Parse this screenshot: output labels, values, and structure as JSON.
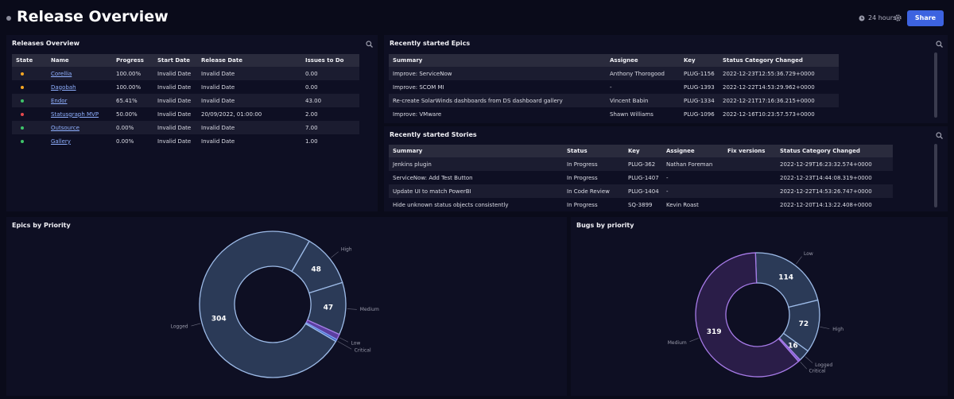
{
  "header": {
    "title": "Release Overview",
    "time_range": "24 hours",
    "share_button": "Share"
  },
  "releases": {
    "title": "Releases Overview",
    "headers": [
      "State",
      "Name",
      "Progress",
      "Start Date",
      "Release Date",
      "Issues to Do"
    ],
    "state_colors": [
      "#f5a623",
      "#f5a623",
      "#3fc46a",
      "#e5484d",
      "#3fc46a",
      "#3fc46a"
    ],
    "rows": [
      [
        "Corellia",
        "100.00%",
        "Invalid Date",
        "Invalid Date",
        "0.00"
      ],
      [
        "Dagobah",
        "100.00%",
        "Invalid Date",
        "Invalid Date",
        "0.00"
      ],
      [
        "Endor",
        "65.41%",
        "Invalid Date",
        "Invalid Date",
        "43.00"
      ],
      [
        "Statusgraph MVP",
        "50.00%",
        "Invalid Date",
        "20/09/2022, 01:00:00",
        "2.00"
      ],
      [
        "Outsource",
        "0.00%",
        "Invalid Date",
        "Invalid Date",
        "7.00"
      ],
      [
        "Gallery",
        "0.00%",
        "Invalid Date",
        "Invalid Date",
        "1.00"
      ]
    ]
  },
  "epics_table": {
    "title": "Recently started Epics",
    "headers": [
      "Summary",
      "Assignee",
      "Key",
      "Status Category Changed"
    ],
    "rows": [
      [
        "Improve: ServiceNow",
        "Anthony Thorogood",
        "PLUG-1156",
        "2022-12-23T12:55:36.729+0000"
      ],
      [
        "Improve: SCOM MI",
        "-",
        "PLUG-1393",
        "2022-12-22T14:53:29.962+0000"
      ],
      [
        "Re-create SolarWinds dashboards from DS dashboard gallery",
        "Vincent Babin",
        "PLUG-1334",
        "2022-12-21T17:16:36.215+0000"
      ],
      [
        "Improve: VMware",
        "Shawn Williams",
        "PLUG-1096",
        "2022-12-16T10:23:57.573+0000"
      ]
    ]
  },
  "stories_table": {
    "title": "Recently started Stories",
    "headers": [
      "Summary",
      "Status",
      "Key",
      "Assignee",
      "Fix versions",
      "Status Category Changed"
    ],
    "rows": [
      [
        "Jenkins plugin",
        "In Progress",
        "PLUG-362",
        "Nathan Foreman",
        null,
        "2022-12-29T16:23:32.574+0000"
      ],
      [
        "ServiceNow: Add Test Button",
        "In Progress",
        "PLUG-1407",
        "-",
        null,
        "2022-12-23T14:44:08.319+0000"
      ],
      [
        "Update UI to match PowerBI",
        "In Code Review",
        "PLUG-1404",
        "-",
        null,
        "2022-12-22T14:53:26.747+0000"
      ],
      [
        "Hide unknown status objects consistently",
        "In Progress",
        "SQ-3899",
        "Kevin Roast",
        null,
        "2022-12-20T14:13:22.408+0000"
      ]
    ]
  },
  "chart_data": [
    {
      "type": "pie",
      "title": "Epics by Priority",
      "categories": [
        "High",
        "Medium",
        "Low",
        "Critical",
        "Logged"
      ],
      "values": [
        48,
        47,
        5,
        2,
        304
      ],
      "colors": [
        "#2b3a57",
        "#2b3a57",
        "#5b3fa0",
        "#3a5fc0",
        "#2b3a57"
      ],
      "stroke_colors": [
        "#9dbbe8",
        "#9dbbe8",
        "#a77be8",
        "#7fa0f0",
        "#9dbbe8"
      ]
    },
    {
      "type": "pie",
      "title": "Bugs by priority",
      "categories": [
        "Low",
        "High",
        "Logged",
        "Critical",
        "Medium"
      ],
      "values": [
        114,
        72,
        16,
        3,
        319
      ],
      "colors": [
        "#2b3a57",
        "#2b3a57",
        "#2b3a57",
        "#7a5cd0",
        "#2a1d48"
      ],
      "stroke_colors": [
        "#9dbbe8",
        "#9dbbe8",
        "#9dbbe8",
        "#a77be8",
        "#a77be8"
      ]
    }
  ]
}
